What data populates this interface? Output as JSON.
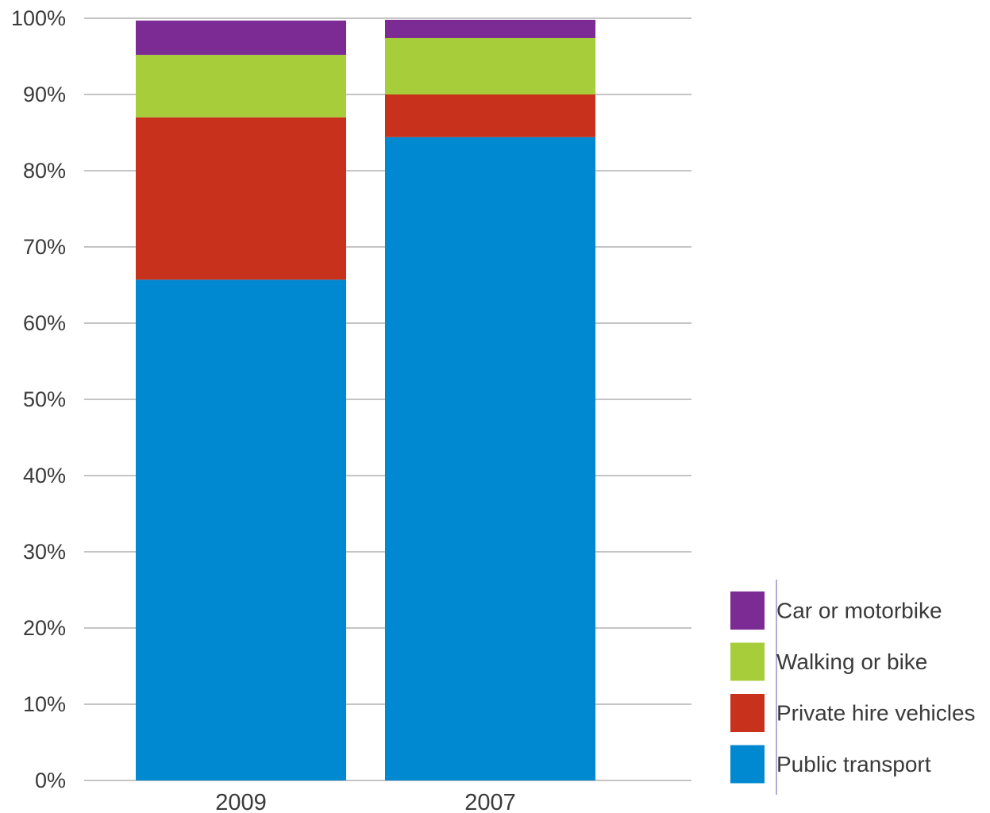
{
  "chart_data": {
    "type": "bar",
    "stacked": true,
    "categories": [
      "2009",
      "2007"
    ],
    "series": [
      {
        "name": "Public transport",
        "color": "#0088d1",
        "values": [
          65.7,
          84.4
        ]
      },
      {
        "name": "Private hire vehicles",
        "color": "#c8321c",
        "values": [
          21.3,
          5.6
        ]
      },
      {
        "name": "Walking or bike",
        "color": "#a7cd3a",
        "values": [
          8.2,
          7.4
        ]
      },
      {
        "name": "Car or motorbike",
        "color": "#7b2b93",
        "values": [
          4.5,
          2.4
        ]
      }
    ],
    "legend_order": [
      "Car or motorbike",
      "Walking or bike",
      "Private hire vehicles",
      "Public transport"
    ],
    "y_ticks": [
      "0%",
      "10%",
      "20%",
      "30%",
      "40%",
      "50%",
      "60%",
      "70%",
      "80%",
      "90%",
      "100%"
    ],
    "ylim": [
      0,
      100
    ],
    "grid": true,
    "legend_position": "bottom-right"
  }
}
